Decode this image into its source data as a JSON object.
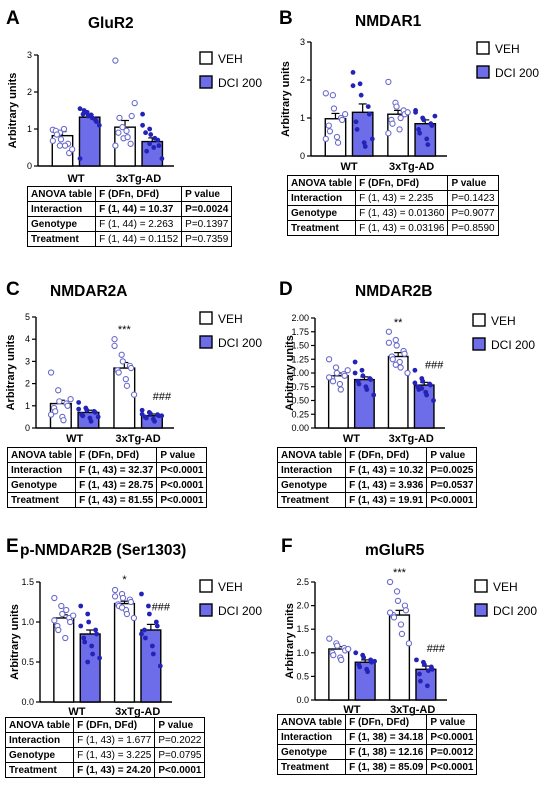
{
  "colors": {
    "veh": "#ffffff",
    "dci": "#6d6dea",
    "veh_dot": "#6a6acc",
    "dci_dot": "#2323b8",
    "axis": "#000000"
  },
  "legend_labels": [
    "VEH",
    "DCI 200"
  ],
  "group_labels": [
    "WT",
    "3xTg-AD"
  ],
  "ylabel": "Arbitrary units",
  "anova_header": [
    "ANOVA table",
    "F (DFn, DFd)",
    "P value"
  ],
  "panels": [
    {
      "letter": "A",
      "chart_data": {
        "type": "bar",
        "title": "GluR2",
        "ylabel": "Arbitrary units",
        "categories": [
          "WT",
          "3xTg-AD"
        ],
        "series": [
          {
            "name": "VEH",
            "values": [
              0.82,
              1.05
            ],
            "sem": [
              0.11,
              0.18
            ],
            "points": [
              [
                0.98,
                0.9,
                0.72,
                0.6,
                0.35,
                0.95,
                0.85,
                1.0,
                0.55,
                0.45,
                0.68,
                0.55
              ],
              [
                2.85,
                1.05,
                0.75,
                0.6,
                1.35,
                0.9,
                1.3,
                0.95,
                0.78,
                1.7,
                0.55
              ]
            ]
          },
          {
            "name": "DCI 200",
            "values": [
              1.32,
              0.66
            ],
            "sem": [
              0.07,
              0.1
            ],
            "points": [
              [
                1.55,
                1.45,
                1.35,
                1.25,
                1.2,
                1.4,
                1.5,
                1.38,
                1.3,
                1.1,
                0.2,
                1.45
              ],
              [
                1.4,
                1.0,
                0.85,
                0.7,
                0.55,
                0.9,
                0.4,
                0.5,
                0.75,
                0.2,
                1.1,
                0.6
              ]
            ]
          }
        ],
        "ylim": [
          0,
          3
        ],
        "yticks": [
          0,
          1,
          2,
          3
        ],
        "grid": false,
        "legend": "right",
        "annotations": []
      },
      "anova": [
        [
          "Interaction",
          "F (1, 44) = 10.37",
          "P=0.0024"
        ],
        [
          "Genotype",
          "F (1, 44) = 2.263",
          "P=0.1397"
        ],
        [
          "Treatment",
          "F (1, 44) = 0.1152",
          "P=0.7359"
        ]
      ]
    },
    {
      "letter": "B",
      "chart_data": {
        "type": "bar",
        "title": "NMDAR1",
        "ylabel": "Arbitrary units",
        "categories": [
          "WT",
          "3xTg-AD"
        ],
        "series": [
          {
            "name": "VEH",
            "values": [
              0.98,
              1.1
            ],
            "sem": [
              0.14,
              0.1
            ],
            "points": [
              [
                1.65,
                1.6,
                1.25,
                1.0,
                0.95,
                0.8,
                0.65,
                0.5,
                0.35,
                1.1,
                0.45
              ],
              [
                1.95,
                1.4,
                1.3,
                1.2,
                1.1,
                0.95,
                0.85,
                0.7,
                1.0,
                1.15,
                0.6
              ]
            ]
          },
          {
            "name": "DCI 200",
            "values": [
              1.15,
              0.85
            ],
            "sem": [
              0.22,
              0.1
            ],
            "points": [
              [
                2.2,
                1.9,
                1.6,
                1.3,
                1.1,
                0.9,
                0.7,
                0.35,
                0.25,
                0.45,
                1.85
              ],
              [
                1.2,
                1.0,
                0.95,
                0.85,
                0.8,
                0.7,
                0.6,
                0.45,
                0.3,
                1.05,
                1.15
              ]
            ]
          }
        ],
        "ylim": [
          0,
          3
        ],
        "yticks": [
          0,
          1,
          2,
          3
        ],
        "grid": false,
        "legend": "right",
        "annotations": []
      },
      "anova": [
        [
          "Interaction",
          "F (1, 43) = 2.235",
          "P=0.1423"
        ],
        [
          "Genotype",
          "F (1, 43) = 0.01360",
          "P=0.9077"
        ],
        [
          "Treatment",
          "F (1, 43) = 0.03196",
          "P=0.8590"
        ]
      ]
    },
    {
      "letter": "C",
      "chart_data": {
        "type": "bar",
        "title": "NMDAR2A",
        "ylabel": "Arbitrary units",
        "categories": [
          "WT",
          "3xTg-AD"
        ],
        "series": [
          {
            "name": "VEH",
            "values": [
              1.1,
              2.7
            ],
            "sem": [
              0.15,
              0.25
            ],
            "points": [
              [
                2.5,
                1.7,
                1.2,
                1.1,
                1.0,
                0.9,
                0.75,
                0.5,
                0.35,
                1.3,
                0.6
              ],
              [
                4.0,
                3.3,
                3.0,
                2.8,
                2.7,
                2.6,
                2.5,
                2.2,
                1.9,
                1.5,
                3.7
              ]
            ]
          },
          {
            "name": "DCI 200",
            "values": [
              0.7,
              0.55
            ],
            "sem": [
              0.1,
              0.08
            ],
            "points": [
              [
                1.15,
                0.9,
                0.8,
                0.75,
                0.7,
                0.6,
                0.55,
                0.45,
                0.3,
                0.5,
                0.85
              ],
              [
                0.8,
                0.7,
                0.65,
                0.6,
                0.55,
                0.5,
                0.45,
                0.4,
                0.3,
                0.55,
                0.62
              ]
            ]
          }
        ],
        "ylim": [
          0,
          5
        ],
        "yticks": [
          0,
          1,
          2,
          3,
          4,
          5
        ],
        "grid": false,
        "legend": "right",
        "annotations": [
          {
            "series": "VEH",
            "category": "3xTg-AD",
            "text": "***"
          },
          {
            "series": "DCI 200",
            "category": "3xTg-AD",
            "text": "###"
          }
        ]
      },
      "anova": [
        [
          "Interaction",
          "F (1, 43) = 32.37",
          "P<0.0001"
        ],
        [
          "Genotype",
          "F (1, 43) = 28.75",
          "P<0.0001"
        ],
        [
          "Treatment",
          "F (1, 43) = 81.55",
          "P<0.0001"
        ]
      ]
    },
    {
      "letter": "D",
      "chart_data": {
        "type": "bar",
        "title": "NMDAR2B",
        "ylabel": "Arbitrary units",
        "categories": [
          "WT",
          "3xTg-AD"
        ],
        "series": [
          {
            "name": "VEH",
            "values": [
              0.95,
              1.3
            ],
            "sem": [
              0.05,
              0.07
            ],
            "points": [
              [
                1.25,
                1.1,
                1.0,
                0.98,
                0.95,
                0.9,
                0.85,
                0.8,
                0.7,
                1.05,
                0.92
              ],
              [
                1.75,
                1.6,
                1.5,
                1.4,
                1.35,
                1.3,
                1.25,
                1.2,
                1.1,
                1.0,
                1.55,
                1.15
              ]
            ]
          },
          {
            "name": "DCI 200",
            "values": [
              0.88,
              0.78
            ],
            "sem": [
              0.05,
              0.05
            ],
            "points": [
              [
                1.2,
                1.05,
                0.95,
                0.9,
                0.88,
                0.85,
                0.8,
                0.75,
                0.7,
                0.6,
                1.0
              ],
              [
                1.05,
                0.9,
                0.85,
                0.8,
                0.78,
                0.75,
                0.7,
                0.65,
                0.6,
                0.5,
                0.82,
                0.72
              ]
            ]
          }
        ],
        "ylim": [
          0,
          2.0
        ],
        "yticks": [
          0.0,
          0.25,
          0.5,
          0.75,
          1.0,
          1.25,
          1.5,
          1.75,
          2.0
        ],
        "grid": false,
        "legend": "right",
        "annotations": [
          {
            "series": "VEH",
            "category": "3xTg-AD",
            "text": "**"
          },
          {
            "series": "DCI 200",
            "category": "3xTg-AD",
            "text": "###"
          }
        ]
      },
      "anova": [
        [
          "Interaction",
          "F (1, 43) = 10.32",
          "P=0.0025"
        ],
        [
          "Genotype",
          "F (1, 43) = 3.936",
          "P=0.0537"
        ],
        [
          "Treatment",
          "F (1, 43) = 19.91",
          "P<0.0001"
        ]
      ]
    },
    {
      "letter": "E",
      "chart_data": {
        "type": "bar",
        "title": "p-NMDAR2B (Ser1303)",
        "ylabel": "Arbitrary units",
        "categories": [
          "WT",
          "3xTg-AD"
        ],
        "series": [
          {
            "name": "VEH",
            "values": [
              1.05,
              1.23
            ],
            "sem": [
              0.04,
              0.03
            ],
            "points": [
              [
                1.3,
                1.2,
                1.1,
                1.05,
                1.0,
                0.95,
                0.9,
                0.8,
                1.15,
                1.08,
                1.02
              ],
              [
                1.4,
                1.35,
                1.3,
                1.28,
                1.25,
                1.22,
                1.2,
                1.15,
                1.1,
                1.05,
                1.32,
                1.18
              ]
            ]
          },
          {
            "name": "DCI 200",
            "values": [
              0.85,
              0.9
            ],
            "sem": [
              0.05,
              0.07
            ],
            "points": [
              [
                1.2,
                1.1,
                1.0,
                0.9,
                0.85,
                0.8,
                0.75,
                0.7,
                0.6,
                0.55,
                0.95,
                0.5
              ],
              [
                1.35,
                1.2,
                1.1,
                1.0,
                0.95,
                0.9,
                0.8,
                0.7,
                0.6,
                0.45,
                0.85
              ]
            ]
          }
        ],
        "ylim": [
          0,
          1.5
        ],
        "yticks": [
          0.0,
          0.5,
          1.0,
          1.5
        ],
        "grid": false,
        "legend": "right",
        "annotations": [
          {
            "series": "VEH",
            "category": "3xTg-AD",
            "text": "*"
          },
          {
            "series": "DCI 200",
            "category": "3xTg-AD",
            "text": "###"
          }
        ]
      },
      "anova": [
        [
          "Interaction",
          "F (1, 43) = 1.677",
          "P=0.2022"
        ],
        [
          "Genotype",
          "F (1, 43) = 3.225",
          "P=0.0795"
        ],
        [
          "Treatment",
          "F (1, 43) = 24.20",
          "P<0.0001"
        ]
      ]
    },
    {
      "letter": "F",
      "chart_data": {
        "type": "bar",
        "title": "mGluR5",
        "ylabel": "Arbitrary units",
        "categories": [
          "WT",
          "3xTg-AD"
        ],
        "series": [
          {
            "name": "VEH",
            "values": [
              1.08,
              1.8
            ],
            "sem": [
              0.05,
              0.1
            ],
            "points": [
              [
                1.3,
                1.2,
                1.15,
                1.1,
                1.05,
                1.0,
                0.95,
                0.9,
                0.85,
                1.08
              ],
              [
                2.5,
                2.3,
                2.1,
                2.0,
                1.9,
                1.8,
                1.75,
                1.6,
                1.4,
                1.2,
                1.85
              ]
            ]
          },
          {
            "name": "DCI 200",
            "values": [
              0.8,
              0.65
            ],
            "sem": [
              0.05,
              0.07
            ],
            "points": [
              [
                1.0,
                0.95,
                0.9,
                0.85,
                0.8,
                0.75,
                0.7,
                0.65,
                0.6,
                0.82
              ],
              [
                0.85,
                0.8,
                0.75,
                0.7,
                0.65,
                0.55,
                0.4,
                0.3,
                0.62
              ]
            ]
          }
        ],
        "ylim": [
          0,
          2.5
        ],
        "yticks": [
          0.0,
          0.5,
          1.0,
          1.5,
          2.0,
          2.5
        ],
        "grid": false,
        "legend": "right",
        "annotations": [
          {
            "series": "VEH",
            "category": "3xTg-AD",
            "text": "***"
          },
          {
            "series": "DCI 200",
            "category": "3xTg-AD",
            "text": "###"
          }
        ]
      },
      "anova": [
        [
          "Interaction",
          "F (1, 38) = 34.18",
          "P<0.0001"
        ],
        [
          "Genotype",
          "F (1, 38) = 12.16",
          "P=0.0012"
        ],
        [
          "Treatment",
          "F (1, 38) = 85.09",
          "P<0.0001"
        ]
      ]
    }
  ]
}
